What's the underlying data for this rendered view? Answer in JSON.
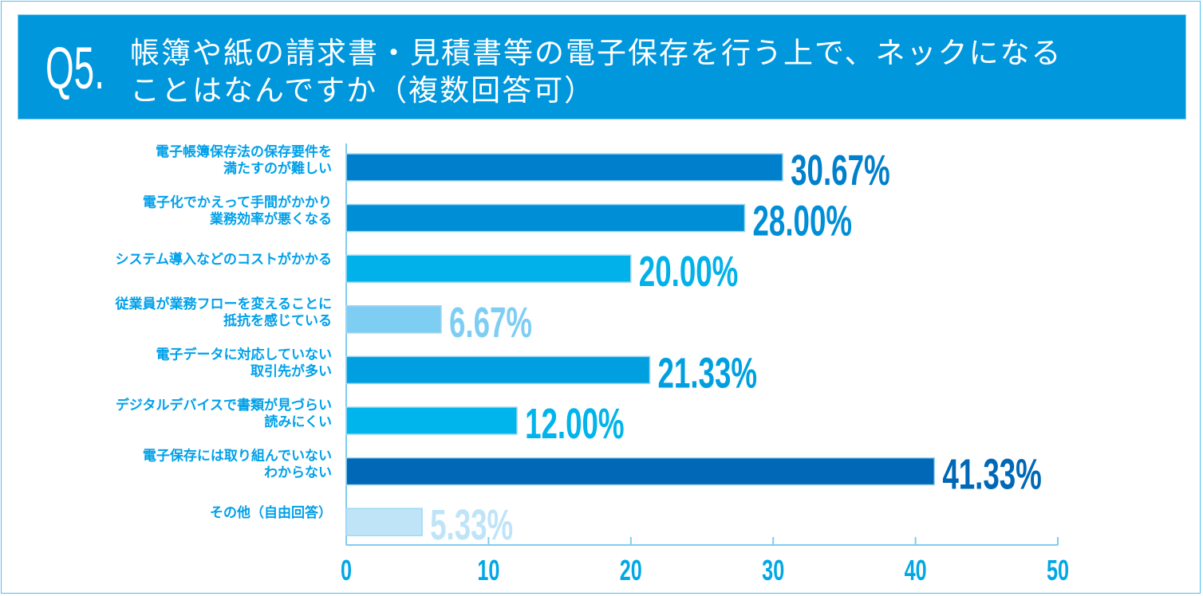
{
  "title": {
    "number": "Q5.",
    "line1": "帳簿や紙の請求書・見積書等の電子保存を行う上で、ネックになる",
    "line2": "ことはなんですか（複数回答可）"
  },
  "chart_data": {
    "type": "bar",
    "orientation": "horizontal",
    "categories": [
      [
        "電子帳簿保存法の保存要件を",
        "満たすのが難しい"
      ],
      [
        "電子化でかえって手間がかかり",
        "業務効率が悪くなる"
      ],
      [
        "システム導入などのコストがかかる"
      ],
      [
        "従業員が業務フローを変えることに",
        "抵抗を感じている"
      ],
      [
        "電子データに対応していない",
        "取引先が多い"
      ],
      [
        "デジタルデバイスで書類が見づらい",
        "読みにくい"
      ],
      [
        "電子保存には取り組んでいない",
        "わからない"
      ],
      [
        "その他（自由回答）"
      ]
    ],
    "values": [
      30.67,
      28.0,
      20.0,
      6.67,
      21.33,
      12.0,
      41.33,
      5.33
    ],
    "data_labels": [
      "30.67%",
      "28.00%",
      "20.00%",
      "6.67%",
      "21.33%",
      "12.00%",
      "41.33%",
      "5.33%"
    ],
    "colors": [
      "#0080cc",
      "#008fd7",
      "#00b1ea",
      "#7ecef4",
      "#00a0e0",
      "#00b4ec",
      "#0068b6",
      "#bfe4f8"
    ],
    "xlim": [
      0,
      50
    ],
    "xticks": [
      "0",
      "10",
      "20",
      "30",
      "40",
      "50"
    ],
    "label_color": "#00a0e9",
    "axis_color": "#7fcdf0",
    "grid": false
  }
}
